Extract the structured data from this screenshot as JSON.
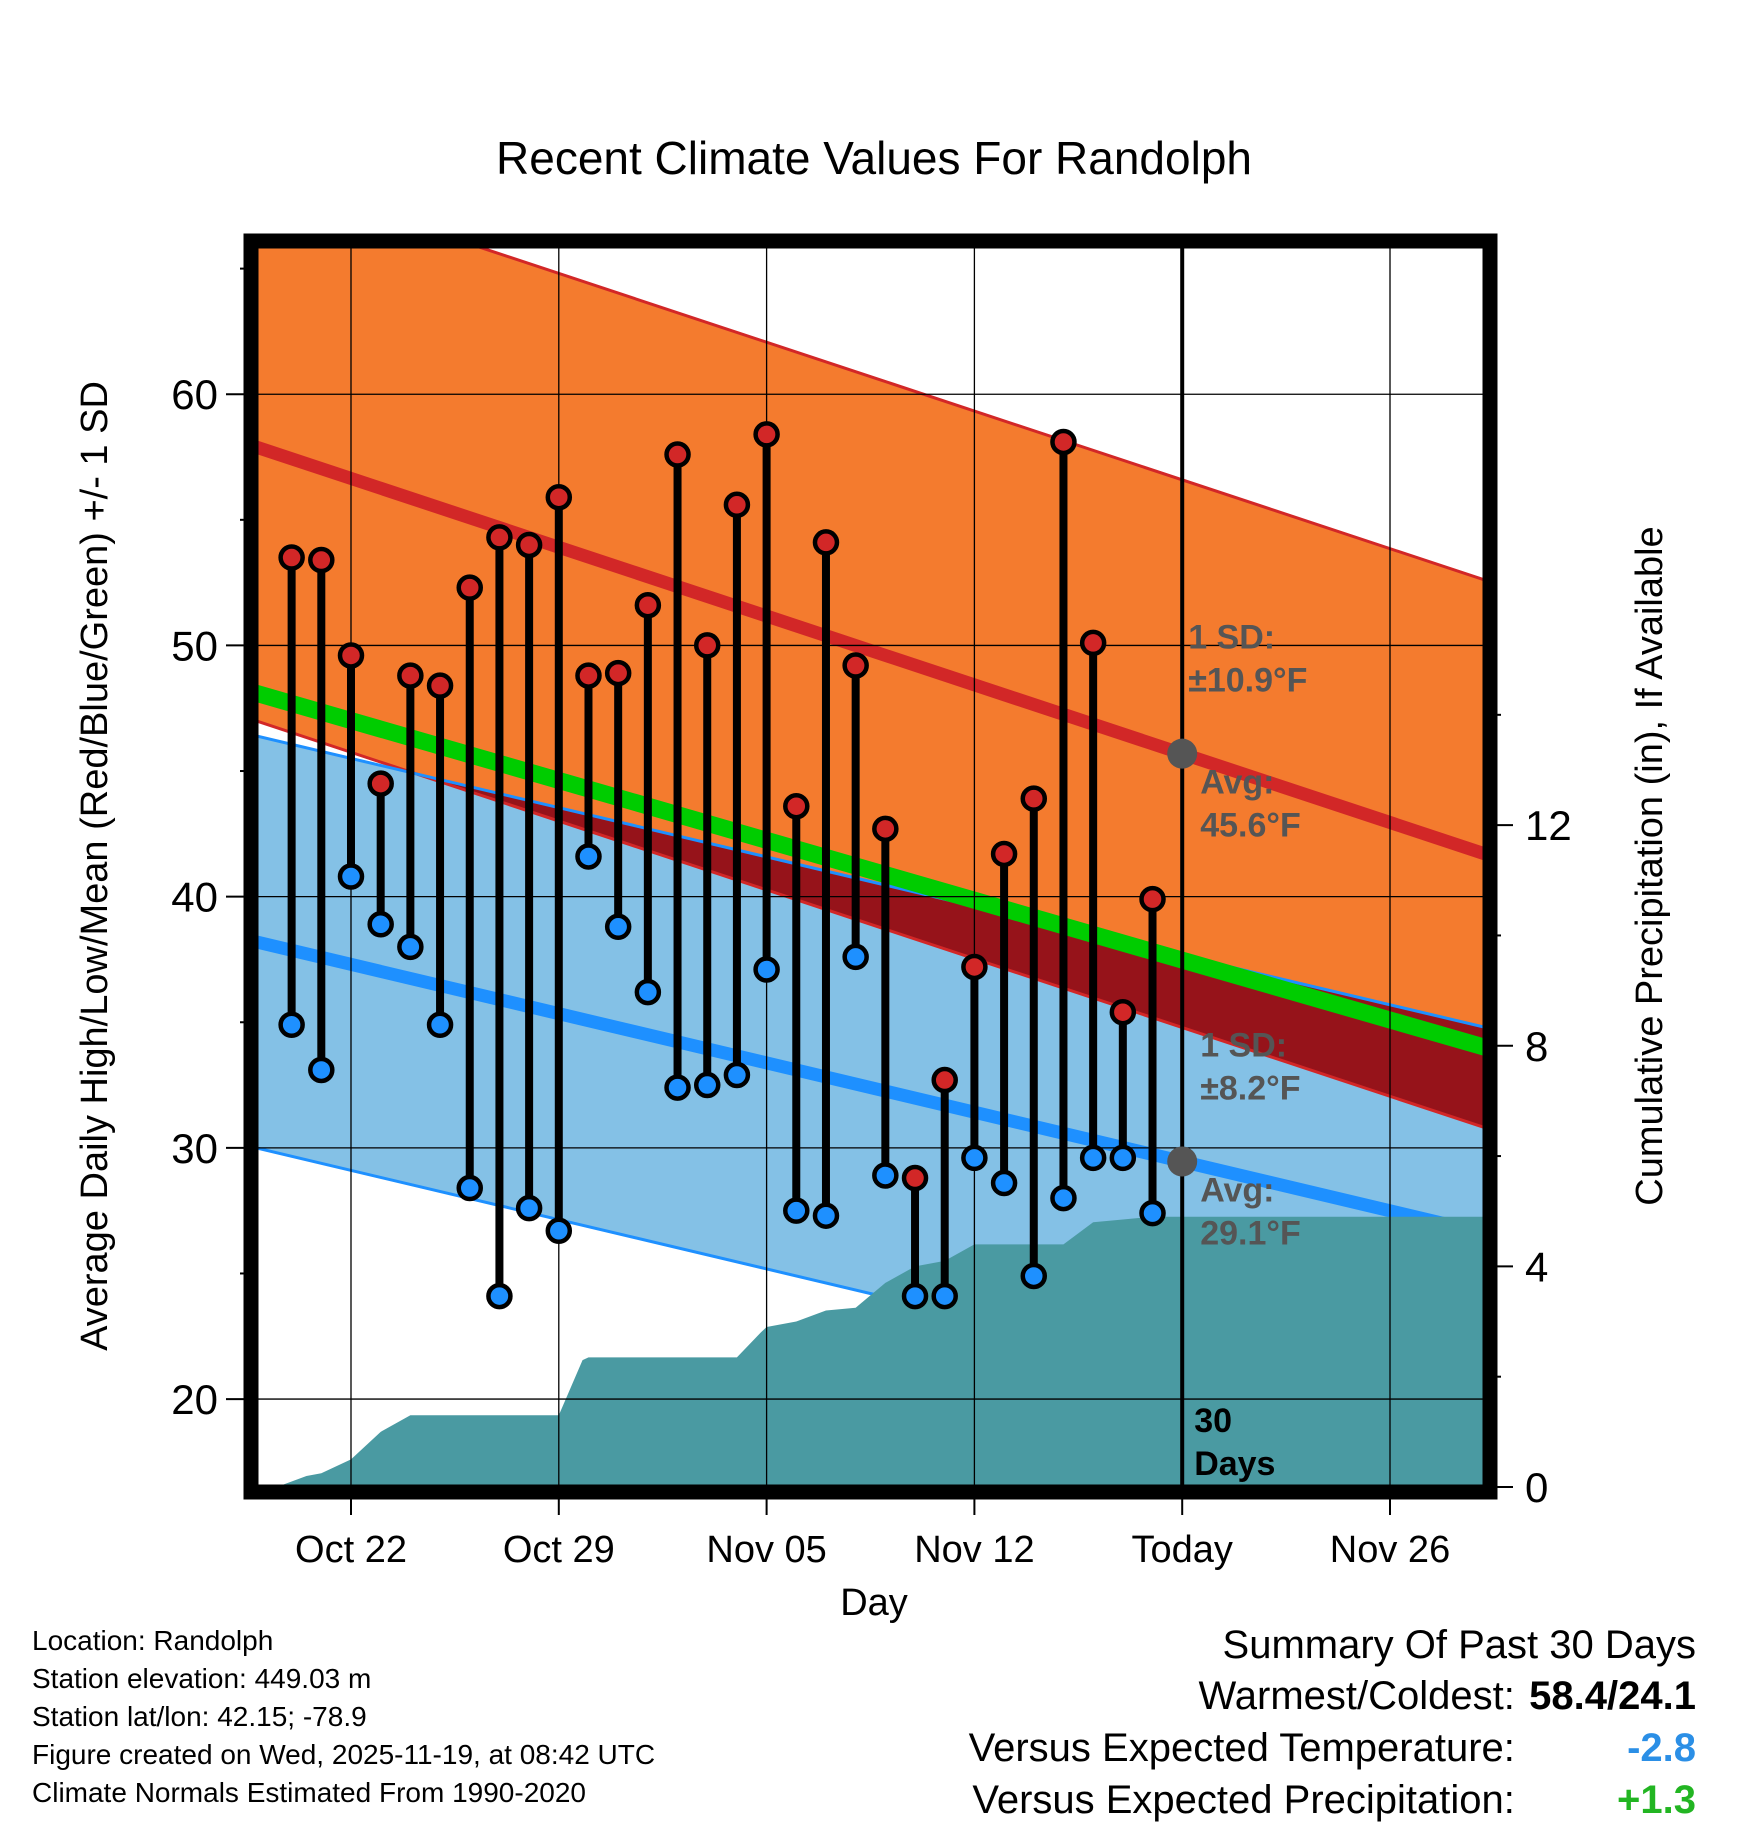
{
  "chart_data": {
    "type": "line",
    "title": "Recent Climate Values For Randolph",
    "xlabel": "Day",
    "ylabel": "Average Daily High/Low/Mean (Red/Blue/Green) +/- 1 SD",
    "y2label": "Cumulative Precipitation (in), If Available",
    "x_domain": [
      -3.2,
      38.2
    ],
    "ylim": [
      16.5,
      65.9
    ],
    "y2lim": [
      0,
      22.5
    ],
    "x_ticks": [
      {
        "day": 0,
        "label": "Oct 22"
      },
      {
        "day": 7,
        "label": "Oct 29"
      },
      {
        "day": 14,
        "label": "Nov 05"
      },
      {
        "day": 21,
        "label": "Nov 12"
      },
      {
        "day": 28,
        "label": "Today"
      },
      {
        "day": 35,
        "label": "Nov 26"
      }
    ],
    "y_ticks": [
      20,
      30,
      40,
      50,
      60
    ],
    "y2_ticks": [
      0,
      4,
      8,
      12
    ],
    "normals": {
      "days": [
        -3.2,
        38.2
      ],
      "high_mean": [
        57.9,
        41.7
      ],
      "high_sd": 10.9,
      "low_mean": [
        38.2,
        26.6
      ],
      "low_sd": 8.2,
      "mean": [
        48.1,
        34.0
      ]
    },
    "observed": {
      "days": [
        -2,
        -1,
        0,
        1,
        2,
        3,
        4,
        5,
        6,
        7,
        8,
        9,
        10,
        11,
        12,
        13,
        14,
        15,
        16,
        17,
        18,
        19,
        20,
        21,
        22,
        23,
        24,
        25,
        26,
        27
      ],
      "highs": [
        53.5,
        53.4,
        49.6,
        44.5,
        48.8,
        48.4,
        52.3,
        54.3,
        54.0,
        55.9,
        48.8,
        48.9,
        51.6,
        57.6,
        50.0,
        55.6,
        58.4,
        43.6,
        54.1,
        49.2,
        42.7,
        28.8,
        32.7,
        37.2,
        41.7,
        43.9,
        58.1,
        50.1,
        35.4,
        39.9
      ],
      "lows": [
        34.9,
        33.1,
        40.8,
        38.9,
        38.0,
        34.9,
        28.4,
        24.1,
        27.6,
        26.7,
        41.6,
        38.8,
        36.2,
        32.4,
        32.5,
        32.9,
        37.1,
        27.5,
        27.3,
        37.6,
        28.9,
        24.1,
        24.1,
        29.6,
        28.6,
        24.9,
        28.0,
        29.6,
        29.6,
        27.4
      ]
    },
    "precipitation": {
      "days": [
        -2.5,
        -1.5,
        -1,
        0,
        1,
        2,
        3,
        4,
        5,
        6,
        7,
        7.8,
        8,
        9,
        10,
        11,
        12,
        13,
        13.8,
        14,
        15,
        16,
        17,
        18,
        19,
        20,
        21,
        22,
        23,
        24,
        25,
        26,
        27,
        28,
        31,
        38.2
      ],
      "values": [
        0,
        0.2,
        0.25,
        0.5,
        1.0,
        1.3,
        1.3,
        1.3,
        1.3,
        1.3,
        1.3,
        2.3,
        2.35,
        2.35,
        2.35,
        2.35,
        2.35,
        2.35,
        2.8,
        2.9,
        3.0,
        3.2,
        3.25,
        3.7,
        4.0,
        4.1,
        4.4,
        4.4,
        4.4,
        4.4,
        4.8,
        4.85,
        4.9,
        4.9,
        4.9,
        4.9
      ]
    },
    "annotations": {
      "high_sd_label": "1 SD:",
      "high_sd_value": "±10.9°F",
      "high_avg_label": "Avg:",
      "high_avg_value": "45.6°F",
      "low_sd_label": "1 SD:",
      "low_sd_value": "±8.2°F",
      "low_avg_label": "Avg:",
      "low_avg_value": "29.1°F",
      "window_number": "30",
      "window_unit": "Days"
    },
    "colors": {
      "high_band": "#f47b2e",
      "high_line": "#d22727",
      "low_band": "#84c1e6",
      "low_line": "#1e90ff",
      "mean_line": "#00cc00",
      "overlap": "#96131a",
      "precip": "#4a9aa2",
      "annotation": "#555555"
    }
  },
  "info": {
    "location": "Location: Randolph",
    "elevation": "Station elevation: 449.03 m",
    "latlon": "Station lat/lon: 42.15; -78.9",
    "created": "Figure created on Wed, 2025-11-19, at 08:42 UTC",
    "normals": "Climate Normals Estimated From 1990-2020"
  },
  "summary": {
    "title": "Summary Of Past 30 Days",
    "warmest_label": "Warmest/Coldest:",
    "warmest_value": "58.4/24.1",
    "temp_label": "Versus Expected Temperature:",
    "temp_value": "-2.8",
    "temp_color": "#2b8fe6",
    "precip_label": "Versus Expected Precipitation:",
    "precip_value": "+1.3",
    "precip_color": "#22b522"
  }
}
